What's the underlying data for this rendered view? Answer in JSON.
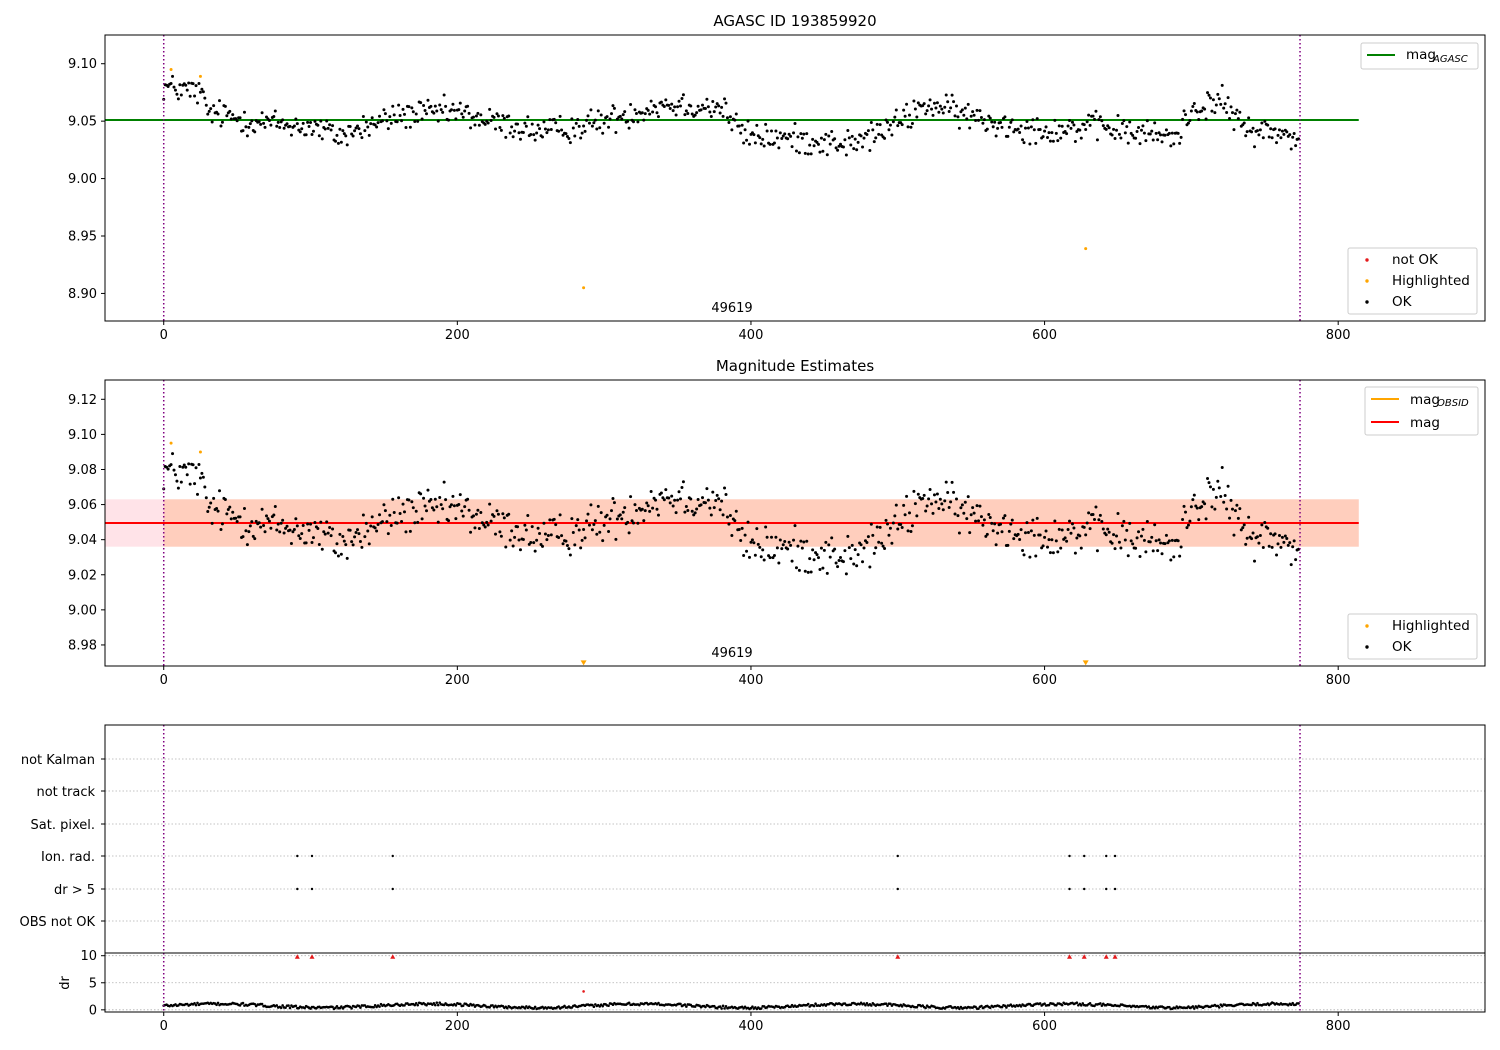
{
  "colors": {
    "ok": "#000000",
    "not_ok": "#e41a1c",
    "highlighted": "#ffa500",
    "mag_agasc_line": "#008000",
    "mag_line": "#ff0000",
    "mag_obsid_line": "#ffa500",
    "band_outer": "#ffc0cb",
    "band_inner": "#ffb38a",
    "vline": "#800080",
    "grid": "#b0b0b0"
  },
  "chart_data": [
    {
      "id": "agasc",
      "type": "scatter",
      "title": "AGASC ID 193859920",
      "xlim": [
        -40,
        900
      ],
      "ylim": [
        8.876,
        9.125
      ],
      "xticks": [
        0,
        200,
        400,
        600,
        800
      ],
      "yticks": [
        8.9,
        8.95,
        9.0,
        9.05,
        9.1
      ],
      "ytick_labels": [
        "8.90",
        "8.95",
        "9.00",
        "9.05",
        "9.10"
      ],
      "vlines": [
        0,
        774
      ],
      "obsid_label": {
        "text": "49619",
        "x": 387,
        "y": 8.88
      },
      "mag_line": {
        "label": "mag",
        "sub": "AGASC",
        "y": 9.051,
        "x": [
          -40,
          814
        ]
      },
      "legend_lines": [
        {
          "label": "mag",
          "sub": "AGASC",
          "color_key": "mag_agasc_line"
        }
      ],
      "legend_markers": [
        {
          "label": "not OK",
          "color_key": "not_ok"
        },
        {
          "label": "Highlighted",
          "color_key": "highlighted"
        },
        {
          "label": "OK",
          "color_key": "ok"
        }
      ],
      "series_ok": {
        "name": "OK",
        "n": 774,
        "x_start": 0,
        "x_step": 1
      },
      "series_highlighted": {
        "name": "Highlighted",
        "points": [
          [
            5,
            9.095
          ],
          [
            25,
            9.089
          ],
          [
            286,
            8.905
          ],
          [
            628,
            8.939
          ]
        ]
      },
      "series_not_ok": {
        "name": "not OK",
        "points": []
      }
    },
    {
      "id": "estimates",
      "type": "scatter",
      "title": "Magnitude Estimates",
      "xlim": [
        -40,
        900
      ],
      "ylim": [
        8.968,
        9.131
      ],
      "xticks": [
        0,
        200,
        400,
        600,
        800
      ],
      "yticks": [
        8.98,
        9.0,
        9.02,
        9.04,
        9.06,
        9.08,
        9.1,
        9.12
      ],
      "ytick_labels": [
        "8.98",
        "9.00",
        "9.02",
        "9.04",
        "9.06",
        "9.08",
        "9.10",
        "9.12"
      ],
      "vlines": [
        0,
        774
      ],
      "obsid_label": {
        "text": "49619",
        "x": 387,
        "y": 8.974
      },
      "mag_line": {
        "label": "mag",
        "y": 9.0495,
        "x": [
          -40,
          814
        ]
      },
      "band_outer": {
        "x": [
          -40,
          814
        ],
        "y": [
          9.036,
          9.063
        ]
      },
      "band_inner": {
        "x": [
          0,
          814
        ],
        "y": [
          9.036,
          9.063
        ]
      },
      "legend_lines": [
        {
          "label": "mag",
          "sub": "OBSID",
          "color_key": "mag_obsid_line"
        },
        {
          "label": "mag",
          "sub": "",
          "color_key": "mag_line"
        }
      ],
      "legend_markers": [
        {
          "label": "Highlighted",
          "color_key": "highlighted"
        },
        {
          "label": "OK",
          "color_key": "ok"
        }
      ],
      "series_ok": {
        "name": "OK",
        "n": 774,
        "x_start": 0,
        "x_step": 1
      },
      "series_highlighted": {
        "name": "Highlighted",
        "points": [
          [
            5,
            9.095
          ],
          [
            25,
            9.09
          ]
        ]
      },
      "offscale_markers": [
        [
          286,
          8.9695
        ],
        [
          628,
          8.9695
        ]
      ]
    },
    {
      "id": "flags",
      "type": "scatter",
      "xlim": [
        -40,
        900
      ],
      "categories": [
        "not Kalman",
        "not track",
        "Sat. pixel.",
        "Ion. rad.",
        "dr > 5",
        "OBS not OK"
      ],
      "vlines": [
        0,
        774
      ],
      "flag_points": {
        "Ion. rad.": [
          91,
          101,
          156,
          500,
          617,
          627,
          642,
          648
        ],
        "dr > 5": [
          91,
          101,
          156,
          500,
          617,
          627,
          642,
          648
        ]
      }
    },
    {
      "id": "dr",
      "type": "scatter",
      "ylabel": "dr",
      "xlim": [
        -40,
        900
      ],
      "ylim": [
        -0.4,
        10.5
      ],
      "xticks": [
        0,
        200,
        400,
        600,
        800
      ],
      "yticks": [
        0,
        5,
        10
      ],
      "ytick_labels": [
        "0",
        "5",
        "10"
      ],
      "vlines": [
        0,
        774
      ],
      "clipped_markers": [
        91,
        101,
        156,
        500,
        617,
        627,
        642,
        648
      ],
      "outlier_points": [
        [
          286,
          3.4
        ]
      ],
      "series_ok": {
        "name": "OK",
        "n": 774,
        "x_start": 0,
        "x_step": 1
      }
    }
  ]
}
